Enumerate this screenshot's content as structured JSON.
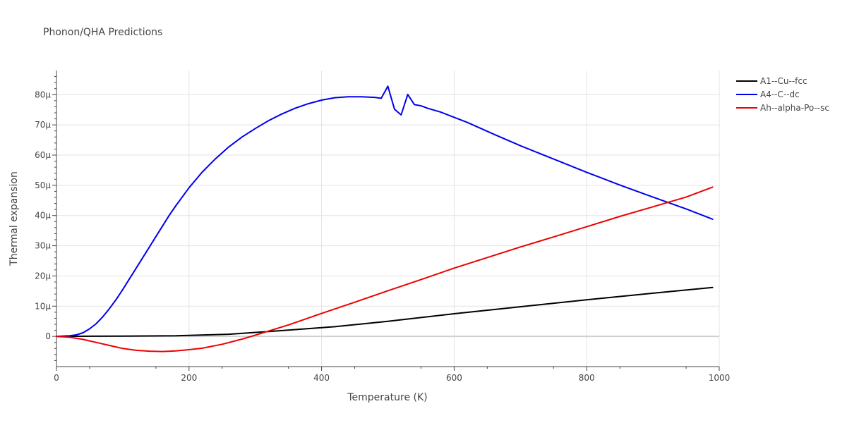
{
  "chart_data": {
    "type": "line",
    "title": "Phonon/QHA Predictions",
    "xlabel": "Temperature (K)",
    "ylabel": "Thermal expansion",
    "xlim": [
      0,
      1000
    ],
    "ylim": [
      -10,
      88
    ],
    "x_ticks": [
      0,
      200,
      400,
      600,
      800,
      1000
    ],
    "y_ticks": [
      0,
      10,
      20,
      30,
      40,
      50,
      60,
      70,
      80
    ],
    "x_tick_labels": [
      "0",
      "200",
      "400",
      "600",
      "800",
      "1000"
    ],
    "y_tick_labels": [
      "0",
      "10µ",
      "20µ",
      "30µ",
      "40µ",
      "50µ",
      "60µ",
      "70µ",
      "80µ"
    ],
    "grid": true,
    "legend_position": "top-right",
    "series": [
      {
        "name": "A1--Cu--fcc",
        "color": "#000000",
        "x": [
          0,
          100,
          180,
          260,
          320,
          420,
          500,
          600,
          700,
          800,
          900,
          990
        ],
        "y": [
          0,
          0.1,
          0.2,
          0.7,
          1.6,
          3.2,
          5.0,
          7.5,
          9.8,
          12.1,
          14.3,
          16.2
        ]
      },
      {
        "name": "A4--C--dc",
        "color": "#0000ee",
        "x": [
          0,
          20,
          30,
          40,
          50,
          60,
          70,
          80,
          90,
          100,
          110,
          120,
          130,
          140,
          150,
          160,
          170,
          180,
          200,
          220,
          240,
          260,
          280,
          300,
          320,
          340,
          360,
          380,
          400,
          420,
          440,
          460,
          480,
          490,
          500,
          510,
          520,
          530,
          540,
          550,
          560,
          580,
          620,
          660,
          700,
          750,
          800,
          850,
          900,
          950,
          990
        ],
        "y": [
          0,
          0.2,
          0.5,
          1.2,
          2.5,
          4.2,
          6.5,
          9.2,
          12.2,
          15.5,
          19.0,
          22.5,
          26.0,
          29.5,
          33.0,
          36.5,
          40.0,
          43.2,
          49.2,
          54.4,
          58.8,
          62.7,
          66.0,
          68.8,
          71.4,
          73.6,
          75.5,
          77.0,
          78.2,
          79.0,
          79.3,
          79.3,
          79.1,
          78.8,
          82.8,
          75.2,
          73.3,
          80.1,
          76.7,
          76.3,
          75.5,
          74.2,
          70.8,
          66.9,
          63.1,
          58.7,
          54.3,
          50.1,
          46.1,
          42.2,
          38.8
        ]
      },
      {
        "name": "Ah--alpha-Po--sc",
        "color": "#ee0000",
        "x": [
          0,
          20,
          40,
          60,
          80,
          100,
          120,
          140,
          160,
          180,
          200,
          220,
          250,
          280,
          300,
          350,
          400,
          450,
          500,
          550,
          600,
          650,
          700,
          750,
          800,
          850,
          900,
          950,
          990
        ],
        "y": [
          0,
          -0.3,
          -1.0,
          -2.0,
          -3.0,
          -4.0,
          -4.6,
          -4.9,
          -5.0,
          -4.8,
          -4.4,
          -3.9,
          -2.6,
          -0.9,
          0.4,
          3.8,
          7.6,
          11.3,
          15.1,
          18.8,
          22.6,
          26.1,
          29.6,
          32.9,
          36.3,
          39.7,
          42.9,
          46.1,
          49.4
        ]
      }
    ]
  }
}
